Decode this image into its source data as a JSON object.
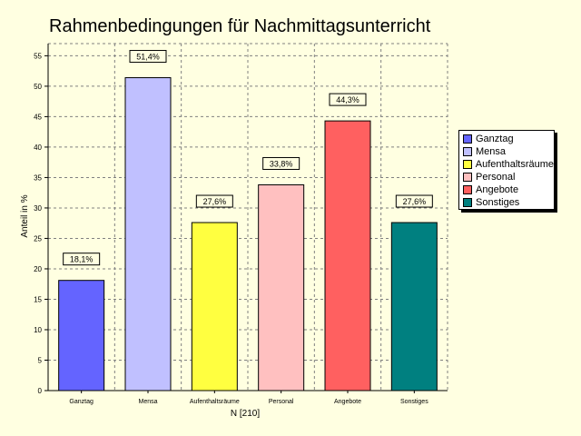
{
  "chart_data": {
    "type": "bar",
    "title": "Rahmenbedingungen für Nachmittagsunterricht",
    "xlabel": "N [210]",
    "ylabel": "Anteil in %",
    "ylim": [
      0,
      57
    ],
    "yticks": [
      0,
      5,
      10,
      15,
      20,
      25,
      30,
      35,
      40,
      45,
      50,
      55
    ],
    "grid": true,
    "legend_position": "right",
    "categories": [
      "Ganztag",
      "Mensa",
      "Aufenthaltsräume",
      "Personal",
      "Angebote",
      "Sonstiges"
    ],
    "values": [
      18.1,
      51.4,
      27.6,
      33.8,
      44.3,
      27.6
    ],
    "value_labels": [
      "18,1%",
      "51,4%",
      "27,6%",
      "33,8%",
      "44,3%",
      "27,6%"
    ],
    "colors": [
      "#6464ff",
      "#c0c0ff",
      "#ffff40",
      "#ffc0c0",
      "#ff6060",
      "#008080"
    ]
  }
}
